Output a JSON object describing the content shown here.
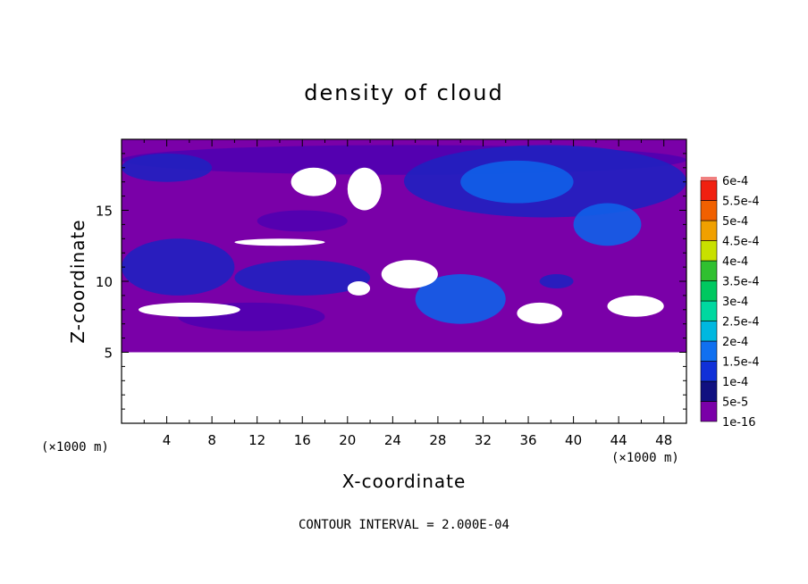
{
  "chart_data": {
    "type": "heatmap",
    "title": "density of cloud",
    "xlabel": "X-coordinate",
    "ylabel": "Z-coordinate",
    "x_unit": "(×1000 m)",
    "y_unit": "(×1000 m)",
    "footer": "CONTOUR INTERVAL = 2.000E-04",
    "xlim": [
      0,
      50
    ],
    "ylim": [
      0,
      20
    ],
    "x_ticks": [
      4,
      8,
      12,
      16,
      20,
      24,
      28,
      32,
      36,
      40,
      44,
      48
    ],
    "y_ticks": [
      5,
      10,
      15
    ],
    "data_zmin": 5,
    "colorbar": {
      "levels": [
        "1e-16",
        "5e-5",
        "1e-4",
        "1.5e-4",
        "2e-4",
        "2.5e-4",
        "3e-4",
        "3.5e-4",
        "4e-4",
        "4.5e-4",
        "5e-4",
        "5.5e-4",
        "6e-4"
      ],
      "colors": [
        "#7a00a8",
        "#101080",
        "#1030d8",
        "#1070f0",
        "#00b8e0",
        "#00d8a0",
        "#00c860",
        "#30c030",
        "#c8e000",
        "#f0a000",
        "#f06000",
        "#f02010",
        "#f08080"
      ]
    },
    "colors": {
      "background": "#7a00a8",
      "low": "#5000b0",
      "mid": "#2020c0",
      "high": "#1060e8",
      "clear": "#ffffff"
    },
    "regions": [
      {
        "level": "low",
        "x": [
          0,
          50
        ],
        "z": [
          17.5,
          19.6
        ]
      },
      {
        "level": "mid",
        "x": [
          0,
          8
        ],
        "z": [
          17.0,
          19.0
        ]
      },
      {
        "level": "mid",
        "x": [
          25,
          50
        ],
        "z": [
          14.5,
          19.6
        ]
      },
      {
        "level": "high",
        "x": [
          30,
          40
        ],
        "z": [
          15.5,
          18.5
        ]
      },
      {
        "level": "high",
        "x": [
          40,
          46
        ],
        "z": [
          12.5,
          15.5
        ]
      },
      {
        "level": "mid",
        "x": [
          0,
          10
        ],
        "z": [
          9.0,
          13.0
        ]
      },
      {
        "level": "mid",
        "x": [
          10,
          22
        ],
        "z": [
          9.0,
          11.5
        ]
      },
      {
        "level": "high",
        "x": [
          26,
          34
        ],
        "z": [
          7.0,
          10.5
        ]
      },
      {
        "level": "mid",
        "x": [
          37,
          40
        ],
        "z": [
          9.5,
          10.5
        ]
      },
      {
        "level": "low",
        "x": [
          12,
          20
        ],
        "z": [
          13.5,
          15.0
        ]
      },
      {
        "level": "low",
        "x": [
          5,
          18
        ],
        "z": [
          6.5,
          8.5
        ]
      }
    ],
    "clear_patches": [
      {
        "x": [
          15,
          19
        ],
        "z": [
          16.0,
          18.0
        ]
      },
      {
        "x": [
          20,
          23
        ],
        "z": [
          15.0,
          18.0
        ]
      },
      {
        "x": [
          1.5,
          10.5
        ],
        "z": [
          7.5,
          8.5
        ]
      },
      {
        "x": [
          35,
          39
        ],
        "z": [
          7.0,
          8.5
        ]
      },
      {
        "x": [
          43,
          48
        ],
        "z": [
          7.5,
          9.0
        ]
      },
      {
        "x": [
          23,
          28
        ],
        "z": [
          9.5,
          11.5
        ]
      },
      {
        "x": [
          10,
          18
        ],
        "z": [
          12.5,
          13.0
        ]
      },
      {
        "x": [
          20,
          22
        ],
        "z": [
          9.0,
          10.0
        ]
      }
    ]
  }
}
